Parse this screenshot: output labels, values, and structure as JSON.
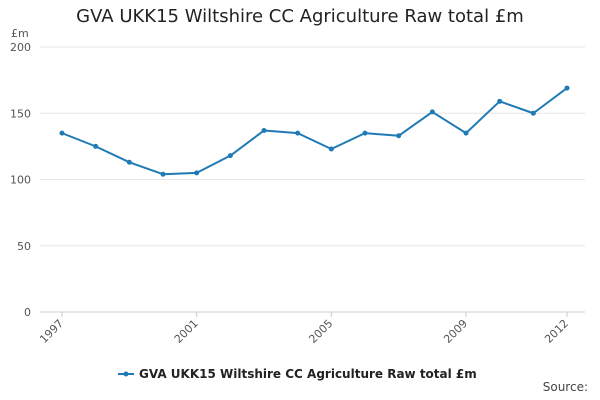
{
  "chart_data": {
    "type": "line",
    "title": "GVA UKK15 Wiltshire CC Agriculture Raw total £m",
    "ylabel": "£m",
    "xlabel": "",
    "x": [
      1997,
      1998,
      1999,
      2000,
      2001,
      2002,
      2003,
      2004,
      2005,
      2006,
      2007,
      2008,
      2009,
      2010,
      2011,
      2012
    ],
    "xtick_labels": [
      "1997",
      "2001",
      "2005",
      "2009",
      "2012"
    ],
    "xtick_values": [
      1997,
      2001,
      2005,
      2009,
      2012
    ],
    "ylim": [
      0,
      200
    ],
    "yticks": [
      0,
      50,
      100,
      150,
      200
    ],
    "grid": true,
    "legend_position": "bottom",
    "series": [
      {
        "name": "GVA UKK15 Wiltshire CC Agriculture Raw total £m",
        "color": "#1f7ab5",
        "values": [
          135,
          125,
          113,
          104,
          105,
          118,
          137,
          135,
          123,
          135,
          133,
          151,
          135,
          159,
          150,
          169
        ]
      }
    ],
    "source_label": "Source:"
  }
}
